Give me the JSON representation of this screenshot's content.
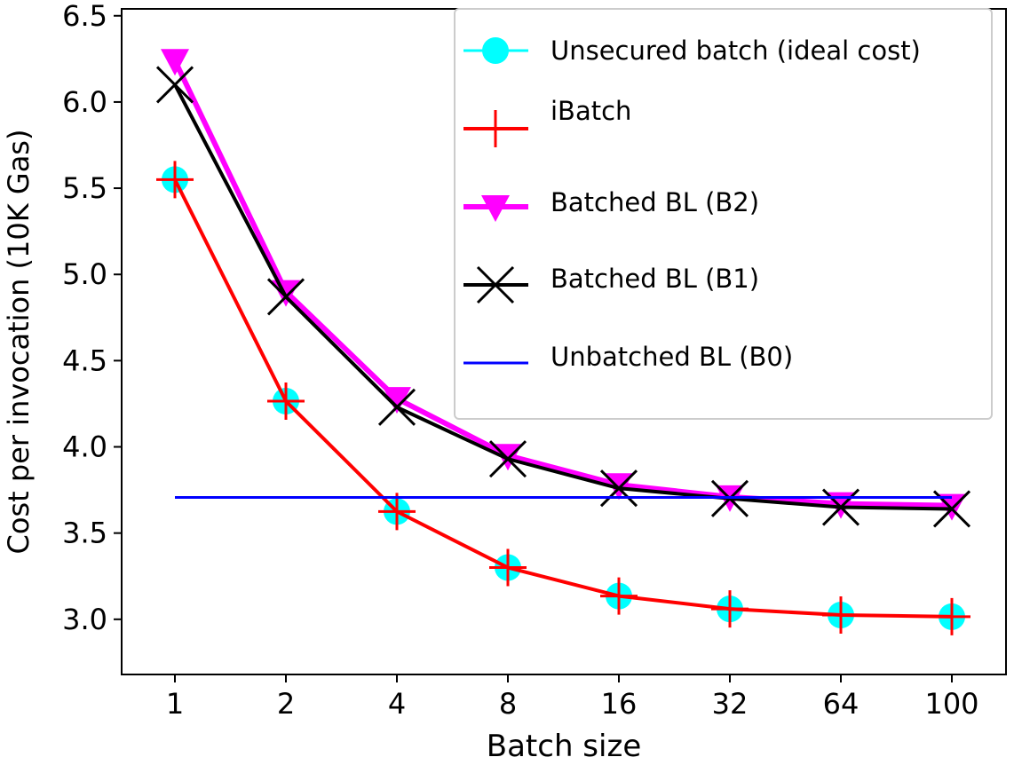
{
  "chart_data": {
    "type": "line",
    "title": "",
    "xlabel": "Batch size",
    "ylabel": "Cost per invocation (10K Gas)",
    "categories": [
      "1",
      "2",
      "4",
      "8",
      "16",
      "32",
      "64",
      "100"
    ],
    "ylim": [
      2.68,
      6.54
    ],
    "yticks": [
      "3.0",
      "3.5",
      "4.0",
      "4.5",
      "5.0",
      "5.5",
      "6.0",
      "6.5"
    ],
    "grid": false,
    "legend_position": "top-right",
    "series": [
      {
        "name": "Unsecured batch (ideal cost)",
        "color": "#00ffff",
        "marker": "circle",
        "line": true,
        "values": [
          5.55,
          4.265,
          3.625,
          3.3,
          3.135,
          3.06,
          3.025,
          3.015
        ]
      },
      {
        "name": "iBatch",
        "color": "#ff0000",
        "marker": "plus",
        "line": true,
        "values": [
          5.55,
          4.265,
          3.625,
          3.3,
          3.135,
          3.06,
          3.025,
          3.015
        ]
      },
      {
        "name": "Batched BL (B2)",
        "color": "#ff00ff",
        "marker": "triangle-down",
        "line": true,
        "values": [
          6.24,
          4.9,
          4.28,
          3.95,
          3.78,
          3.71,
          3.67,
          3.66
        ]
      },
      {
        "name": "Batched BL (B1)",
        "color": "#000000",
        "marker": "x",
        "line": true,
        "values": [
          6.1,
          4.87,
          4.23,
          3.93,
          3.76,
          3.7,
          3.65,
          3.64
        ]
      },
      {
        "name": "Unbatched BL (B0)",
        "color": "#0000ff",
        "marker": "none",
        "line": true,
        "values": [
          3.707,
          3.707,
          3.707,
          3.707,
          3.707,
          3.707,
          3.707,
          3.707
        ]
      }
    ]
  }
}
